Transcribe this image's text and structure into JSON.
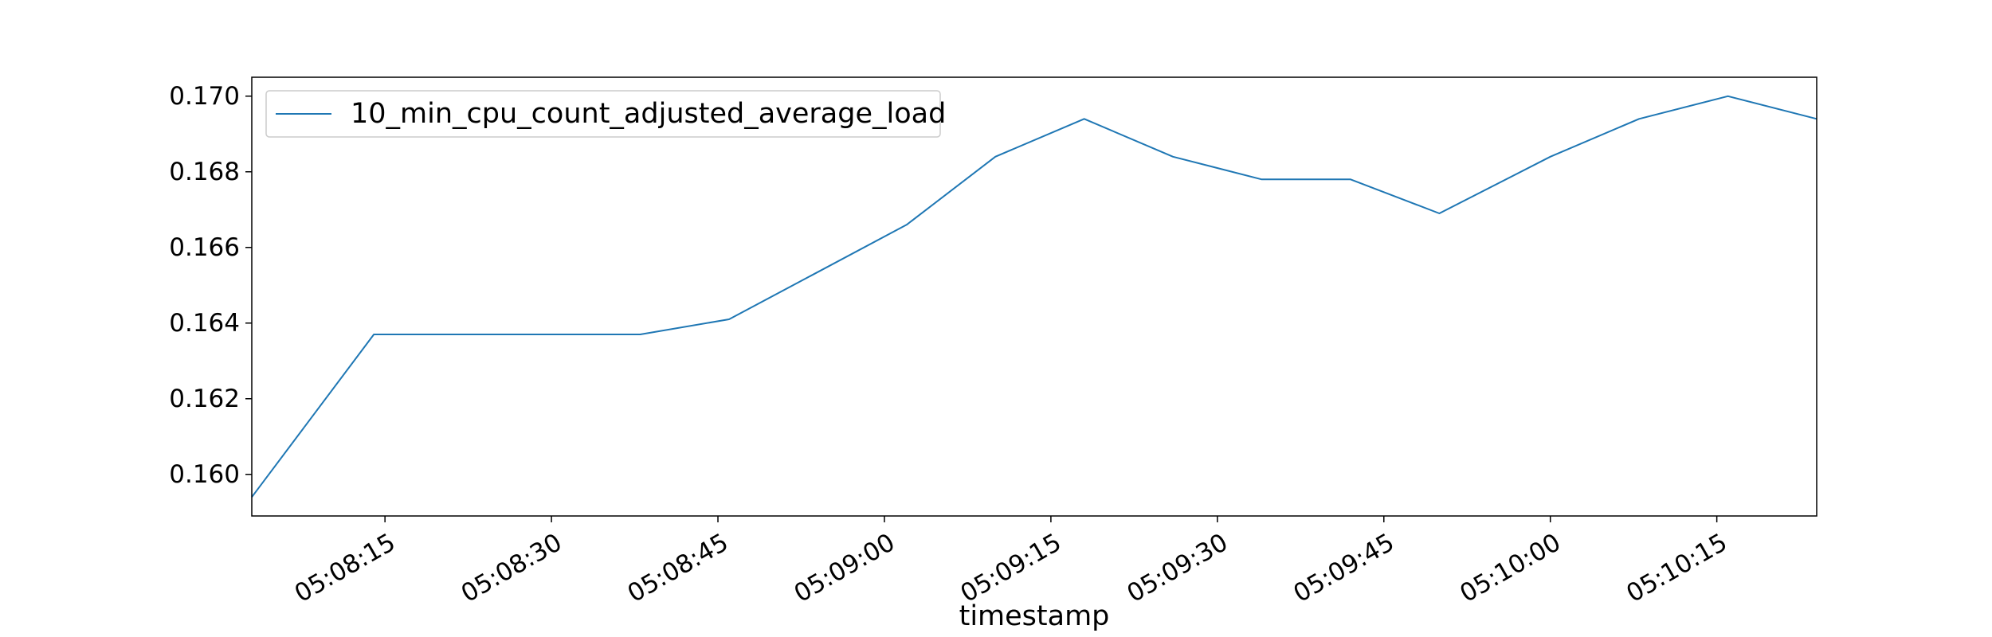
{
  "chart_data": {
    "type": "line",
    "title": "",
    "xlabel": "timestamp",
    "ylabel": "",
    "x": [
      "05:08:03",
      "05:08:14",
      "05:08:38",
      "05:08:46",
      "05:09:02",
      "05:09:10",
      "05:09:18",
      "05:09:26",
      "05:09:34",
      "05:09:42",
      "05:09:50",
      "05:10:00",
      "05:10:08",
      "05:10:16",
      "05:10:24"
    ],
    "series": [
      {
        "name": "10_min_cpu_count_adjusted_average_load",
        "values": [
          0.1594,
          0.1637,
          0.1637,
          0.1641,
          0.1666,
          0.1684,
          0.1694,
          0.1684,
          0.1678,
          0.1678,
          0.1669,
          0.1684,
          0.1694,
          0.17,
          0.1694
        ],
        "color": "#1f77b4"
      }
    ],
    "xlim": [
      "05:08:03",
      "05:10:24"
    ],
    "ylim": [
      0.1589,
      0.1705
    ],
    "xticks": [
      "05:08:15",
      "05:08:30",
      "05:08:45",
      "05:09:00",
      "05:09:15",
      "05:09:30",
      "05:09:45",
      "05:10:00",
      "05:10:15"
    ],
    "yticks": [
      "0.160",
      "0.162",
      "0.164",
      "0.166",
      "0.168",
      "0.170"
    ],
    "grid": false,
    "legend_position": "top-left"
  }
}
